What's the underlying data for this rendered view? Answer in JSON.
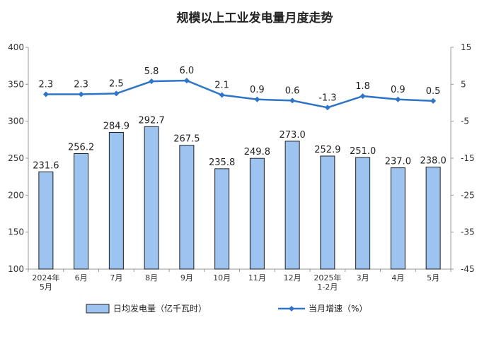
{
  "chart_data": {
    "type": "bar",
    "title": "规模以上工业发电量月度走势",
    "categories": [
      [
        "2024年",
        "5月"
      ],
      [
        "6月"
      ],
      [
        "7月"
      ],
      [
        "8月"
      ],
      [
        "9月"
      ],
      [
        "10月"
      ],
      [
        "11月"
      ],
      [
        "12月"
      ],
      [
        "2025年",
        "1-2月"
      ],
      [
        "3月"
      ],
      [
        "4月"
      ],
      [
        "5月"
      ]
    ],
    "series": [
      {
        "name": "日均发电量（亿千瓦时）",
        "type": "bar",
        "axis": "left",
        "color": "#9dc3f0",
        "values": [
          231.6,
          256.2,
          284.9,
          292.7,
          267.5,
          235.8,
          249.8,
          273.0,
          252.9,
          251.0,
          237.0,
          238.0
        ],
        "labels": [
          "231.6",
          "256.2",
          "284.9",
          "292.7",
          "267.5",
          "235.8",
          "249.8",
          "273.0",
          "252.9",
          "251.0",
          "237.0",
          "238.0"
        ]
      },
      {
        "name": "当月增速（%）",
        "type": "line",
        "axis": "right",
        "color": "#2e75c8",
        "values": [
          2.3,
          2.3,
          2.5,
          5.8,
          6.0,
          2.1,
          0.9,
          0.6,
          -1.3,
          1.8,
          0.9,
          0.5
        ],
        "labels": [
          "2.3",
          "2.3",
          "2.5",
          "5.8",
          "6.0",
          "2.1",
          "0.9",
          "0.6",
          "-1.3",
          "1.8",
          "0.9",
          "0.5"
        ]
      }
    ],
    "y_left": {
      "min": 100,
      "max": 400,
      "ticks": [
        "100",
        "150",
        "200",
        "250",
        "300",
        "350",
        "400"
      ]
    },
    "y_right": {
      "min": -45,
      "max": 15,
      "ticks": [
        "-45",
        "-35",
        "-25",
        "-15",
        "-5",
        "5",
        "15"
      ]
    },
    "legend_position": "bottom",
    "grid": false
  }
}
